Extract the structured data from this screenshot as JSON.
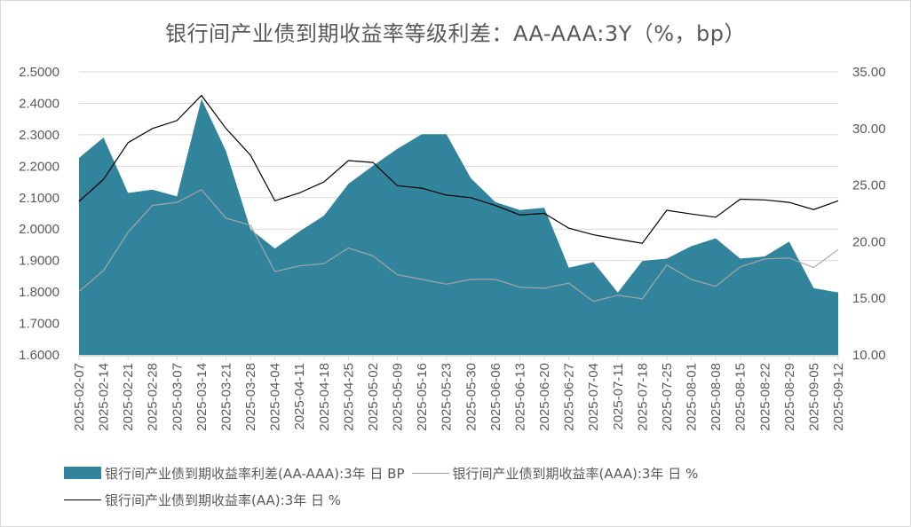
{
  "title": "银行间产业债到期收益率等级利差：AA-AAA:3Y（%，bp）",
  "colors": {
    "spread_area": "#31849b",
    "aaa_line": "#a6a6a6",
    "aa_line": "#000000",
    "gridline": "#d9d9d9",
    "axis_text": "#595959"
  },
  "legend": {
    "spread": "银行间产业债到期收益率利差(AA-AAA):3年 日 BP",
    "aaa": "银行间产业债到期收益率(AAA):3年 日 %",
    "aa": "银行间产业债到期收益率(AA):3年 日 %"
  },
  "chart_data": {
    "type": "area+line",
    "title": "银行间产业债到期收益率等级利差：AA-AAA:3Y（%，bp）",
    "xlabel": "",
    "ylabel_left": "",
    "ylabel_right": "",
    "ylim_left": [
      1.6,
      2.5
    ],
    "ylim_right": [
      10,
      35
    ],
    "yticks_left": [
      "2.5000",
      "2.4000",
      "2.3000",
      "2.2000",
      "2.1000",
      "2.0000",
      "1.9000",
      "1.8000",
      "1.7000",
      "1.6000"
    ],
    "yticks_right": [
      "35.00",
      "30.00",
      "25.00",
      "20.00",
      "15.00",
      "10.00"
    ],
    "grid": true,
    "legend_position": "bottom",
    "categories": [
      "2025-02-07",
      "2025-02-14",
      "2025-02-21",
      "2025-02-28",
      "2025-03-07",
      "2025-03-14",
      "2025-03-21",
      "2025-03-28",
      "2025-04-04",
      "2025-04-11",
      "2025-04-18",
      "2025-04-25",
      "2025-05-02",
      "2025-05-09",
      "2025-05-16",
      "2025-05-23",
      "2025-05-30",
      "2025-06-06",
      "2025-06-13",
      "2025-06-20",
      "2025-06-27",
      "2025-07-04",
      "2025-07-11",
      "2025-07-18",
      "2025-07-25",
      "2025-08-01",
      "2025-08-08",
      "2025-08-15",
      "2025-08-22",
      "2025-08-29",
      "2025-09-05",
      "2025-09-12"
    ],
    "series": [
      {
        "name": "银行间产业债到期收益率利差(AA-AAA):3年 日 BP",
        "type": "area",
        "axis": "right",
        "values": [
          27.4,
          29.2,
          24.3,
          24.6,
          24.0,
          32.6,
          28.0,
          21.1,
          19.4,
          20.9,
          22.3,
          25.1,
          26.7,
          28.2,
          29.5,
          29.5,
          25.6,
          23.5,
          22.8,
          23.0,
          17.7,
          18.2,
          15.5,
          18.3,
          18.5,
          19.6,
          20.3,
          18.5,
          18.7,
          20.0,
          15.9,
          15.5
        ]
      },
      {
        "name": "银行间产业债到期收益率(AAA):3年 日 %",
        "type": "line",
        "axis": "left",
        "values": [
          1.802,
          1.868,
          1.99,
          2.075,
          2.085,
          2.125,
          2.035,
          2.012,
          1.865,
          1.883,
          1.89,
          1.94,
          1.915,
          1.855,
          1.84,
          1.825,
          1.84,
          1.84,
          1.815,
          1.812,
          1.828,
          1.77,
          1.79,
          1.778,
          1.886,
          1.84,
          1.818,
          1.88,
          1.905,
          1.908,
          1.878,
          1.935
        ]
      },
      {
        "name": "银行间产业债到期收益率(AA):3年 日 %",
        "type": "line",
        "axis": "left",
        "values": [
          2.088,
          2.158,
          2.275,
          2.32,
          2.345,
          2.425,
          2.32,
          2.235,
          2.09,
          2.115,
          2.15,
          2.218,
          2.212,
          2.138,
          2.13,
          2.108,
          2.1,
          2.075,
          2.045,
          2.05,
          2.003,
          1.982,
          1.968,
          1.955,
          2.06,
          2.048,
          2.038,
          2.095,
          2.093,
          2.085,
          2.062,
          2.09
        ]
      }
    ]
  }
}
